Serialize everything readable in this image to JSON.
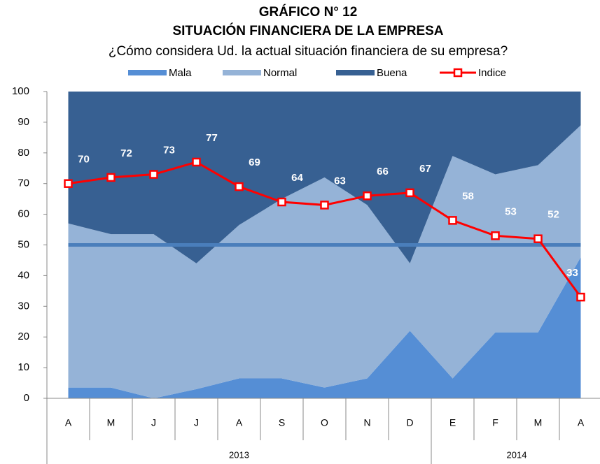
{
  "chart_data": {
    "type": "stacked_area_line",
    "title": "GRÁFICO N° 12",
    "subtitle": "SITUACIÓN FINANCIERA DE LA EMPRESA",
    "question": "¿Cómo considera Ud. la actual situación financiera de su empresa?",
    "categories": [
      "A",
      "M",
      "J",
      "J",
      "A",
      "S",
      "O",
      "N",
      "D",
      "E",
      "F",
      "M",
      "A"
    ],
    "category_years": [
      "2013",
      "2013",
      "2013",
      "2013",
      "2013",
      "2013",
      "2013",
      "2013",
      "2013",
      "2014",
      "2014",
      "2014",
      "2014"
    ],
    "series": [
      {
        "name": "Mala",
        "color": "#558ed5",
        "values": [
          3.5,
          3.5,
          0,
          3,
          6.5,
          6.5,
          3.5,
          6.5,
          22,
          6.5,
          21.5,
          21.5,
          46
        ]
      },
      {
        "name": "Normal",
        "color": "#95b3d7",
        "values": [
          53.5,
          50,
          53.5,
          41,
          50,
          58.5,
          68.5,
          56.5,
          22,
          72.5,
          51.5,
          54.5,
          43
        ]
      },
      {
        "name": "Buena",
        "color": "#376092",
        "values": [
          43,
          46.5,
          46.5,
          56,
          43.5,
          35,
          28,
          37,
          56,
          21,
          27,
          24,
          11
        ]
      }
    ],
    "index": {
      "name": "Indice",
      "color": "#ff0000",
      "values": [
        70,
        72,
        73,
        77,
        69,
        64,
        63,
        66,
        67,
        58,
        53,
        52,
        33
      ]
    },
    "reference_line": {
      "value": 50,
      "color": "#4a7ebb"
    },
    "ylim": [
      0,
      100
    ],
    "yticks": [
      0,
      10,
      20,
      30,
      40,
      50,
      60,
      70,
      80,
      90,
      100
    ]
  }
}
